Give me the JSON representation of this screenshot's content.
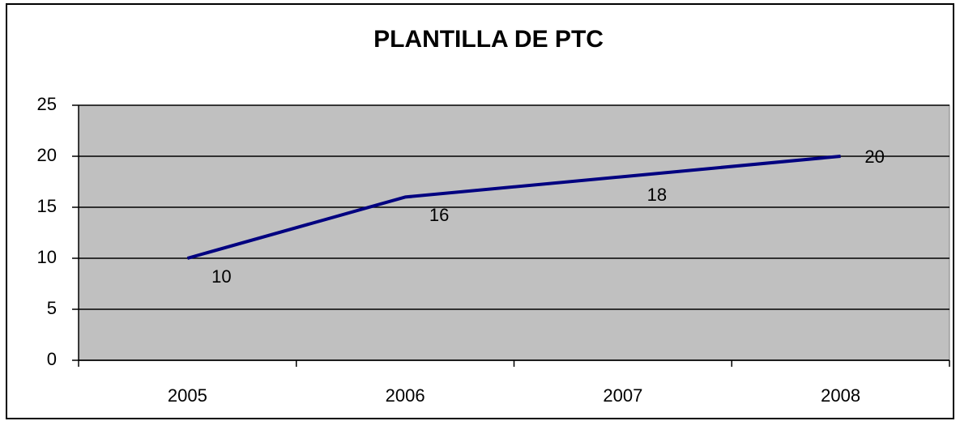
{
  "chart_data": {
    "type": "line",
    "title": "PLANTILLA DE PTC",
    "categories": [
      "2005",
      "2006",
      "2007",
      "2008"
    ],
    "series": [
      {
        "name": "PTC",
        "color": "#000080",
        "values": [
          10,
          16,
          18,
          20
        ]
      }
    ],
    "ylim": [
      0,
      25
    ],
    "yticks": [
      0,
      5,
      10,
      15,
      20,
      25
    ],
    "grid": true
  }
}
